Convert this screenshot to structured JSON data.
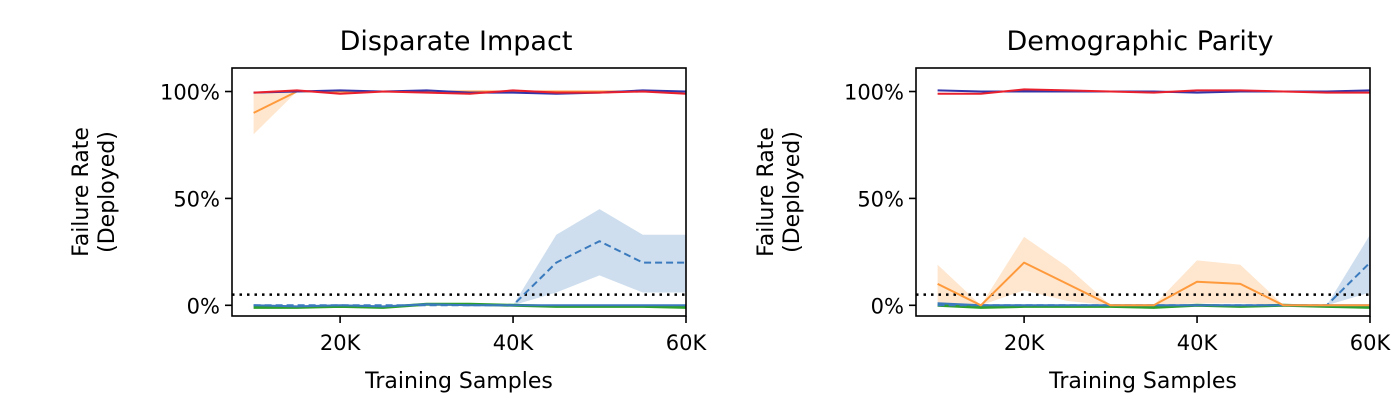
{
  "chart_data": [
    {
      "type": "line",
      "title": "Disparate Impact",
      "xlabel": "Training Samples",
      "ylabel": "Failure Rate (Deployed)",
      "ylabel_lines": [
        "Failure Rate",
        "(Deployed)"
      ],
      "x": [
        10000,
        15000,
        20000,
        25000,
        30000,
        35000,
        40000,
        45000,
        50000,
        55000,
        60000
      ],
      "xlim": [
        7500,
        60000
      ],
      "ylim": [
        -5,
        111
      ],
      "xticks": [
        20000,
        40000,
        60000
      ],
      "xtick_labels": [
        "20K",
        "40K",
        "60K"
      ],
      "yticks": [
        0,
        50,
        100
      ],
      "ytick_labels": [
        "0%",
        "50%",
        "100%"
      ],
      "threshold": 5,
      "series": [
        {
          "color": "#ff9a3c",
          "dash": "solid",
          "values": [
            90,
            100,
            100,
            100,
            100,
            100,
            100,
            100,
            100,
            100,
            100
          ],
          "band_lower": [
            80,
            100,
            100,
            100,
            100,
            100,
            100,
            100,
            100,
            100,
            100
          ],
          "band_upper": [
            100,
            100,
            100,
            100,
            100,
            100,
            100,
            100,
            100,
            100,
            100
          ]
        },
        {
          "color": "#3333aa",
          "dash": "solid",
          "values": [
            99.5,
            100,
            100.5,
            100,
            100.5,
            99.5,
            99.5,
            99,
            99.5,
            100.5,
            100
          ]
        },
        {
          "color": "#e8202e",
          "dash": "solid",
          "values": [
            99.5,
            100.5,
            99,
            100,
            99.5,
            99,
            100.5,
            99.5,
            99.5,
            100,
            99
          ]
        },
        {
          "color": "#3a7abd",
          "dash": "dashed",
          "values": [
            0,
            0,
            0,
            0,
            0,
            0,
            0,
            20,
            30,
            20,
            20
          ],
          "band_lower": [
            0,
            0,
            0,
            0,
            0,
            0,
            0,
            6,
            14,
            6,
            6
          ],
          "band_upper": [
            0,
            0,
            0,
            0,
            0,
            0,
            0,
            33,
            45,
            33,
            33
          ]
        },
        {
          "color": "#3a7abd",
          "dash": "solid",
          "values": [
            0,
            -0.5,
            0,
            -0.5,
            0.5,
            0,
            0,
            0,
            0,
            0,
            0
          ]
        },
        {
          "color": "#2ca02c",
          "dash": "solid",
          "values": [
            -1,
            -1,
            -0.5,
            -1,
            0.5,
            0.5,
            0,
            -0.5,
            -0.5,
            -0.5,
            -1
          ]
        }
      ]
    },
    {
      "type": "line",
      "title": "Demographic Parity",
      "xlabel": "Training Samples",
      "ylabel": "Failure Rate (Deployed)",
      "ylabel_lines": [
        "Failure Rate",
        "(Deployed)"
      ],
      "x": [
        10000,
        15000,
        20000,
        25000,
        30000,
        35000,
        40000,
        45000,
        50000,
        55000,
        60000
      ],
      "xlim": [
        7500,
        60000
      ],
      "ylim": [
        -5,
        111
      ],
      "xticks": [
        20000,
        40000,
        60000
      ],
      "xtick_labels": [
        "20K",
        "40K",
        "60K"
      ],
      "yticks": [
        0,
        50,
        100
      ],
      "ytick_labels": [
        "0%",
        "50%",
        "100%"
      ],
      "threshold": 5,
      "series": [
        {
          "color": "#ff9a3c",
          "dash": "solid",
          "values": [
            10,
            0,
            20,
            10,
            0,
            0,
            11,
            10,
            0,
            0,
            0
          ],
          "band_lower": [
            0,
            0,
            7,
            2,
            0,
            0,
            1,
            1,
            0,
            0,
            0
          ],
          "band_upper": [
            19,
            0,
            32,
            18,
            0,
            0,
            21,
            19,
            0,
            0,
            0
          ]
        },
        {
          "color": "#3333aa",
          "dash": "solid",
          "values": [
            100.5,
            100,
            100,
            100,
            100,
            100,
            99.5,
            100,
            100,
            100,
            100.5
          ]
        },
        {
          "color": "#e8202e",
          "dash": "solid",
          "values": [
            99,
            99,
            101,
            100.5,
            100,
            99.5,
            100.5,
            100.5,
            100,
            99.5,
            99.5
          ]
        },
        {
          "color": "#3a7abd",
          "dash": "dashed",
          "values": [
            0,
            0,
            0,
            0,
            0,
            0,
            0,
            0,
            0,
            0,
            20
          ],
          "band_lower": [
            0,
            0,
            0,
            0,
            0,
            0,
            0,
            0,
            0,
            0,
            6
          ],
          "band_upper": [
            0,
            0,
            0,
            0,
            0,
            0,
            0,
            0,
            0,
            0,
            33
          ]
        },
        {
          "color": "#3a7abd",
          "dash": "solid",
          "values": [
            1,
            0,
            0,
            0,
            0,
            0,
            0,
            0,
            0,
            0,
            0
          ]
        },
        {
          "color": "#2ca02c",
          "dash": "solid",
          "values": [
            0,
            -1,
            -0.5,
            -0.5,
            -0.5,
            -1,
            0,
            -0.5,
            0,
            -0.5,
            -1
          ]
        }
      ]
    }
  ]
}
